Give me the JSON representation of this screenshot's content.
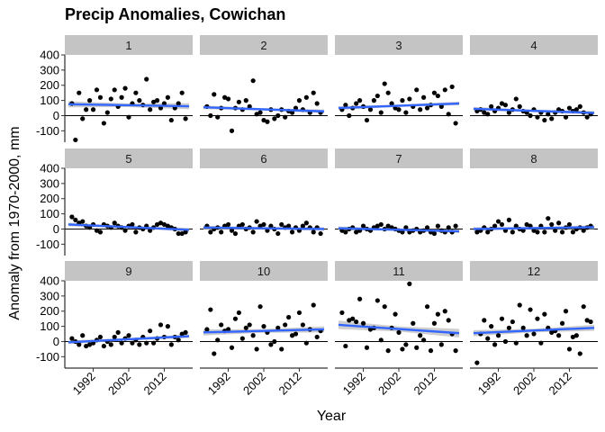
{
  "chart_data": {
    "type": "scatter",
    "title": "Precip Anomalies, Cowichan",
    "xlabel": "Year",
    "ylabel": "Anomaly from 1970-2000, mm",
    "facet_labels": [
      "1",
      "2",
      "3",
      "4",
      "5",
      "6",
      "7",
      "8",
      "9",
      "10",
      "11",
      "12"
    ],
    "xlim": [
      1984,
      2020
    ],
    "x_ticks": [
      1992,
      2002,
      2012
    ],
    "x_tick_labels": [
      "1992",
      "2002",
      "2012"
    ],
    "ylim": [
      -175,
      400
    ],
    "y_ticks": [
      -100,
      0,
      100,
      200,
      300,
      400
    ],
    "y_tick_labels": [
      "-100",
      "0",
      "100",
      "200",
      "300",
      "400"
    ],
    "reference_line": 0,
    "colors": {
      "points": "#000000",
      "trend": "#3366ff",
      "ribbon": "#c6c6c6",
      "strip": "#c4c4c4"
    },
    "grid": false,
    "panels": [
      {
        "facet": "1",
        "x": [
          1986,
          1987,
          1988,
          1989,
          1990,
          1991,
          1992,
          1993,
          1994,
          1995,
          1996,
          1997,
          1998,
          1999,
          2000,
          2001,
          2002,
          2003,
          2004,
          2005,
          2006,
          2007,
          2008,
          2009,
          2010,
          2011,
          2012,
          2013,
          2014,
          2015,
          2016,
          2017,
          2018
        ],
        "y": [
          80,
          -160,
          150,
          -20,
          40,
          100,
          40,
          170,
          120,
          -50,
          20,
          110,
          170,
          60,
          120,
          180,
          -10,
          80,
          150,
          100,
          70,
          240,
          40,
          90,
          100,
          50,
          80,
          120,
          -30,
          50,
          80,
          150,
          -20
        ],
        "trend": [
          75,
          62
        ]
      },
      {
        "facet": "2",
        "x": [
          1986,
          1987,
          1988,
          1989,
          1990,
          1991,
          1992,
          1993,
          1994,
          1995,
          1996,
          1997,
          1998,
          1999,
          2000,
          2001,
          2002,
          2003,
          2004,
          2005,
          2006,
          2007,
          2008,
          2009,
          2010,
          2011,
          2012,
          2013,
          2014,
          2015,
          2016,
          2017,
          2018
        ],
        "y": [
          60,
          0,
          140,
          -10,
          50,
          120,
          110,
          -100,
          50,
          90,
          40,
          100,
          60,
          230,
          10,
          20,
          -30,
          -40,
          40,
          -20,
          0,
          40,
          -10,
          30,
          20,
          50,
          100,
          40,
          120,
          20,
          150,
          80,
          20
        ],
        "trend": [
          55,
          28
        ]
      },
      {
        "facet": "3",
        "x": [
          1986,
          1987,
          1988,
          1989,
          1990,
          1991,
          1992,
          1993,
          1994,
          1995,
          1996,
          1997,
          1998,
          1999,
          2000,
          2001,
          2002,
          2003,
          2004,
          2005,
          2006,
          2007,
          2008,
          2009,
          2010,
          2011,
          2012,
          2013,
          2014,
          2015,
          2016,
          2017,
          2018
        ],
        "y": [
          40,
          70,
          0,
          50,
          80,
          100,
          60,
          -30,
          40,
          100,
          130,
          20,
          210,
          150,
          80,
          50,
          40,
          100,
          20,
          110,
          60,
          170,
          40,
          120,
          50,
          70,
          150,
          130,
          60,
          170,
          10,
          190,
          -50
        ],
        "trend": [
          50,
          80
        ]
      },
      {
        "facet": "4",
        "x": [
          1986,
          1987,
          1988,
          1989,
          1990,
          1991,
          1992,
          1993,
          1994,
          1995,
          1996,
          1997,
          1998,
          1999,
          2000,
          2001,
          2002,
          2003,
          2004,
          2005,
          2006,
          2007,
          2008,
          2009,
          2010,
          2011,
          2012,
          2013,
          2014,
          2015,
          2016,
          2017,
          2018
        ],
        "y": [
          30,
          40,
          20,
          10,
          60,
          30,
          50,
          80,
          70,
          20,
          40,
          110,
          60,
          30,
          20,
          0,
          40,
          -10,
          20,
          -30,
          10,
          -20,
          20,
          40,
          30,
          -10,
          50,
          30,
          40,
          60,
          20,
          -10,
          10
        ],
        "trend": [
          45,
          18
        ]
      },
      {
        "facet": "5",
        "x": [
          1986,
          1987,
          1988,
          1989,
          1990,
          1991,
          1992,
          1993,
          1994,
          1995,
          1996,
          1997,
          1998,
          1999,
          2000,
          2001,
          2002,
          2003,
          2004,
          2005,
          2006,
          2007,
          2008,
          2009,
          2010,
          2011,
          2012,
          2013,
          2014,
          2015,
          2016,
          2017,
          2018
        ],
        "y": [
          80,
          60,
          40,
          50,
          20,
          10,
          30,
          -10,
          -20,
          30,
          20,
          10,
          40,
          20,
          10,
          -10,
          20,
          30,
          -20,
          10,
          0,
          20,
          -10,
          10,
          30,
          40,
          30,
          20,
          10,
          0,
          -30,
          -30,
          -20
        ],
        "trend": [
          30,
          -5
        ]
      },
      {
        "facet": "6",
        "x": [
          1986,
          1987,
          1988,
          1989,
          1990,
          1991,
          1992,
          1993,
          1994,
          1995,
          1996,
          1997,
          1998,
          1999,
          2000,
          2001,
          2002,
          2003,
          2004,
          2005,
          2006,
          2007,
          2008,
          2009,
          2010,
          2011,
          2012,
          2013,
          2014,
          2015,
          2016,
          2017,
          2018
        ],
        "y": [
          20,
          -20,
          0,
          10,
          -20,
          20,
          30,
          -10,
          -30,
          20,
          30,
          0,
          10,
          -20,
          50,
          20,
          30,
          -10,
          20,
          0,
          -30,
          30,
          10,
          20,
          -20,
          10,
          -10,
          20,
          40,
          10,
          -20,
          10,
          -30
        ],
        "trend": [
          10,
          0
        ]
      },
      {
        "facet": "7",
        "x": [
          1986,
          1987,
          1988,
          1989,
          1990,
          1991,
          1992,
          1993,
          1994,
          1995,
          1996,
          1997,
          1998,
          1999,
          2000,
          2001,
          2002,
          2003,
          2004,
          2005,
          2006,
          2007,
          2008,
          2009,
          2010,
          2011,
          2012,
          2013,
          2014,
          2015,
          2016,
          2017,
          2018
        ],
        "y": [
          -10,
          -20,
          0,
          10,
          -20,
          -10,
          20,
          0,
          -10,
          10,
          20,
          30,
          0,
          20,
          10,
          0,
          -10,
          -20,
          10,
          -20,
          -10,
          0,
          -20,
          -10,
          10,
          -20,
          -30,
          20,
          -10,
          -20,
          10,
          -20,
          20
        ],
        "trend": [
          5,
          -15
        ]
      },
      {
        "facet": "8",
        "x": [
          1986,
          1987,
          1988,
          1989,
          1990,
          1991,
          1992,
          1993,
          1994,
          1995,
          1996,
          1997,
          1998,
          1999,
          2000,
          2001,
          2002,
          2003,
          2004,
          2005,
          2006,
          2007,
          2008,
          2009,
          2010,
          2011,
          2012,
          2013,
          2014,
          2015,
          2016,
          2017,
          2018
        ],
        "y": [
          -20,
          -10,
          10,
          -20,
          0,
          20,
          50,
          30,
          -10,
          60,
          -20,
          20,
          0,
          -10,
          30,
          20,
          -10,
          -20,
          20,
          -20,
          70,
          30,
          -10,
          40,
          -20,
          10,
          30,
          -20,
          0,
          10,
          -10,
          10,
          20
        ],
        "trend": [
          0,
          12
        ]
      },
      {
        "facet": "9",
        "x": [
          1986,
          1987,
          1988,
          1989,
          1990,
          1991,
          1992,
          1993,
          1994,
          1995,
          1996,
          1997,
          1998,
          1999,
          2000,
          2001,
          2002,
          2003,
          2004,
          2005,
          2006,
          2007,
          2008,
          2009,
          2010,
          2011,
          2012,
          2013,
          2014,
          2015,
          2016,
          2017,
          2018
        ],
        "y": [
          20,
          0,
          -20,
          40,
          -30,
          -20,
          -10,
          10,
          30,
          -30,
          0,
          -20,
          30,
          60,
          -10,
          20,
          40,
          -10,
          10,
          -20,
          30,
          -10,
          70,
          -10,
          20,
          110,
          30,
          100,
          -20,
          30,
          10,
          50,
          60
        ],
        "trend": [
          -5,
          35
        ]
      },
      {
        "facet": "10",
        "x": [
          1986,
          1987,
          1988,
          1989,
          1990,
          1991,
          1992,
          1993,
          1994,
          1995,
          1996,
          1997,
          1998,
          1999,
          2000,
          2001,
          2002,
          2003,
          2004,
          2005,
          2006,
          2007,
          2008,
          2009,
          2010,
          2011,
          2012,
          2013,
          2014,
          2015,
          2016,
          2017,
          2018
        ],
        "y": [
          80,
          210,
          -80,
          10,
          110,
          70,
          80,
          -40,
          150,
          190,
          20,
          90,
          110,
          40,
          -50,
          230,
          100,
          60,
          -20,
          0,
          90,
          -50,
          110,
          160,
          40,
          50,
          190,
          110,
          -10,
          80,
          240,
          30,
          70
        ],
        "trend": [
          60,
          80
        ]
      },
      {
        "facet": "11",
        "x": [
          1986,
          1987,
          1988,
          1989,
          1990,
          1991,
          1992,
          1993,
          1994,
          1995,
          1996,
          1997,
          1998,
          1999,
          2000,
          2001,
          2002,
          2003,
          2004,
          2005,
          2006,
          2007,
          2008,
          2009,
          2010,
          2011,
          2012,
          2013,
          2014,
          2015,
          2016,
          2017,
          2018
        ],
        "y": [
          190,
          -30,
          140,
          150,
          130,
          280,
          120,
          -40,
          80,
          90,
          270,
          10,
          230,
          -60,
          90,
          180,
          60,
          -50,
          -20,
          380,
          120,
          -40,
          40,
          10,
          230,
          -60,
          120,
          180,
          -20,
          200,
          140,
          50,
          -60
        ],
        "trend": [
          110,
          55
        ]
      },
      {
        "facet": "12",
        "x": [
          1986,
          1987,
          1988,
          1989,
          1990,
          1991,
          1992,
          1993,
          1994,
          1995,
          1996,
          1997,
          1998,
          1999,
          2000,
          2001,
          2002,
          2003,
          2004,
          2005,
          2006,
          2007,
          2008,
          2009,
          2010,
          2011,
          2012,
          2013,
          2014,
          2015,
          2016,
          2017,
          2018
        ],
        "y": [
          -140,
          50,
          140,
          20,
          100,
          -20,
          40,
          150,
          0,
          90,
          130,
          -10,
          240,
          90,
          40,
          210,
          50,
          150,
          -10,
          180,
          90,
          60,
          70,
          40,
          120,
          200,
          -50,
          30,
          40,
          -80,
          230,
          140,
          130
        ],
        "trend": [
          55,
          90
        ]
      }
    ]
  }
}
